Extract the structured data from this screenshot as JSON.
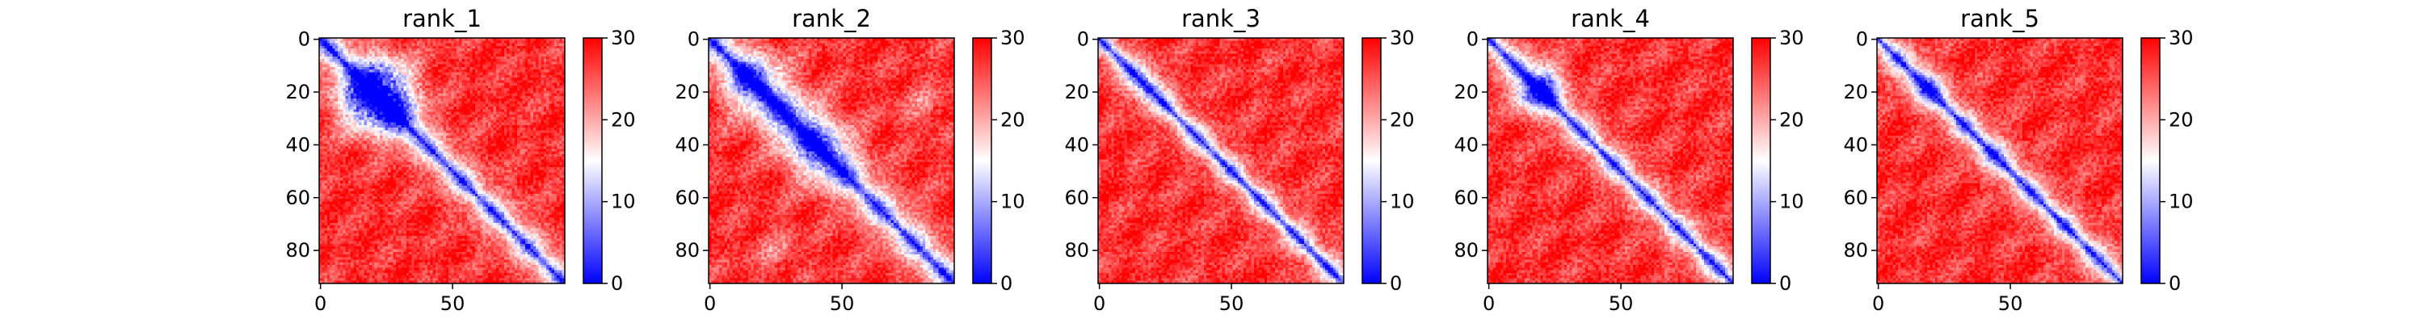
{
  "chart_data": [
    {
      "type": "heatmap",
      "title": "rank_1",
      "n": 93,
      "xticks": [
        0,
        50
      ],
      "yticks": [
        0,
        20,
        40,
        60,
        80
      ],
      "colorbar": {
        "ticks": [
          0,
          10,
          20,
          30
        ],
        "min": 0,
        "max": 30
      },
      "colormap": [
        "#0000ff",
        "#ffffff",
        "#ff0000"
      ],
      "diagonal_band": {
        "core": 1.2,
        "width": 5.5
      },
      "low_blobs": [
        {
          "x": 24,
          "y": 18,
          "r": 13,
          "depth": 18
        },
        {
          "x": 30,
          "y": 27,
          "r": 8,
          "depth": 10
        },
        {
          "x": 15,
          "y": 22,
          "r": 7,
          "depth": 8
        }
      ]
    },
    {
      "type": "heatmap",
      "title": "rank_2",
      "n": 93,
      "xticks": [
        0,
        50
      ],
      "yticks": [
        0,
        20,
        40,
        60,
        80
      ],
      "colorbar": {
        "ticks": [
          0,
          10,
          20,
          30
        ],
        "min": 0,
        "max": 30
      },
      "colormap": [
        "#0000ff",
        "#ffffff",
        "#ff0000"
      ],
      "diagonal_band": {
        "core": 1.2,
        "width": 6.5
      },
      "low_blobs": [
        {
          "x": 18,
          "y": 17,
          "r": 12,
          "depth": 14
        },
        {
          "x": 45,
          "y": 42,
          "r": 11,
          "depth": 13
        },
        {
          "x": 30,
          "y": 36,
          "r": 9,
          "depth": 9
        },
        {
          "x": 25,
          "y": 80,
          "r": 9,
          "depth": 5
        }
      ]
    },
    {
      "type": "heatmap",
      "title": "rank_3",
      "n": 93,
      "xticks": [
        0,
        50
      ],
      "yticks": [
        0,
        20,
        40,
        60,
        80
      ],
      "colorbar": {
        "ticks": [
          0,
          10,
          20,
          30
        ],
        "min": 0,
        "max": 30
      },
      "colormap": [
        "#0000ff",
        "#ffffff",
        "#ff0000"
      ],
      "diagonal_band": {
        "core": 1.2,
        "width": 4.5
      },
      "low_blobs": [
        {
          "x": 18,
          "y": 17,
          "r": 6,
          "depth": 9
        }
      ]
    },
    {
      "type": "heatmap",
      "title": "rank_4",
      "n": 93,
      "xticks": [
        0,
        50
      ],
      "yticks": [
        0,
        20,
        40,
        60,
        80
      ],
      "colorbar": {
        "ticks": [
          0,
          10,
          20,
          30
        ],
        "min": 0,
        "max": 30
      },
      "colormap": [
        "#0000ff",
        "#ffffff",
        "#ff0000"
      ],
      "diagonal_band": {
        "core": 1.2,
        "width": 5.0
      },
      "low_blobs": [
        {
          "x": 20,
          "y": 18,
          "r": 8,
          "depth": 13
        },
        {
          "x": 14,
          "y": 22,
          "r": 6,
          "depth": 7
        }
      ]
    },
    {
      "type": "heatmap",
      "title": "rank_5",
      "n": 93,
      "xticks": [
        0,
        50
      ],
      "yticks": [
        0,
        20,
        40,
        60,
        80
      ],
      "colorbar": {
        "ticks": [
          0,
          10,
          20,
          30
        ],
        "min": 0,
        "max": 30
      },
      "colormap": [
        "#0000ff",
        "#ffffff",
        "#ff0000"
      ],
      "diagonal_band": {
        "core": 1.2,
        "width": 5.0
      },
      "low_blobs": [
        {
          "x": 19,
          "y": 17,
          "r": 6,
          "depth": 10
        },
        {
          "x": 44,
          "y": 40,
          "r": 5,
          "depth": 5
        }
      ]
    }
  ]
}
